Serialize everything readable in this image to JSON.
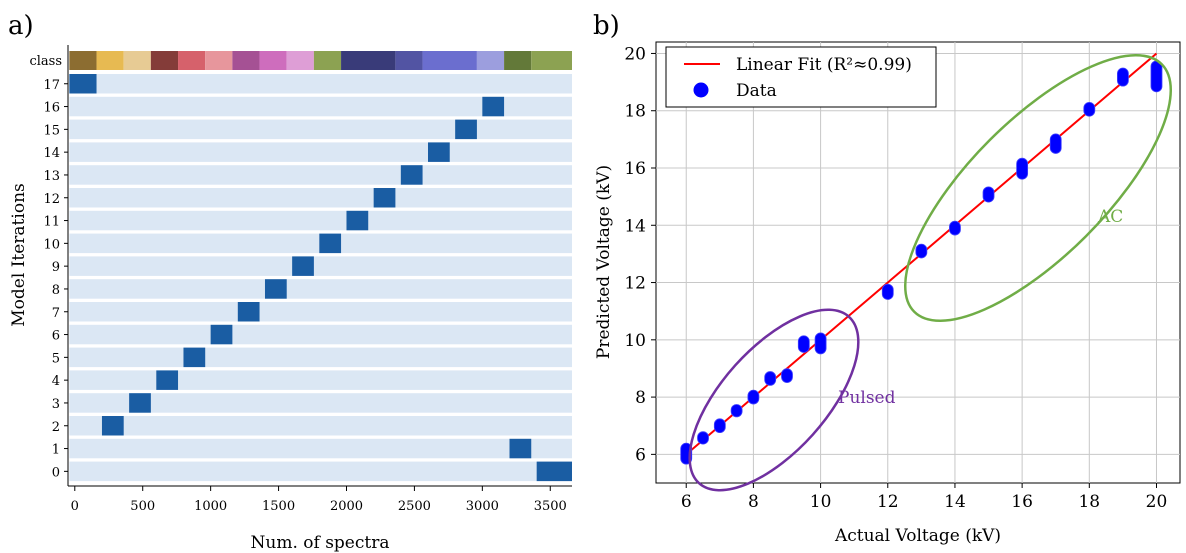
{
  "panels": {
    "a": "a)",
    "b": "b)"
  },
  "chart_data": [
    {
      "type": "heatmap",
      "xlabel": "Num. of spectra",
      "ylabel": "Model Iterations",
      "xlim": [
        -50,
        3660
      ],
      "x_ticks": [
        0,
        500,
        1000,
        1500,
        2000,
        2500,
        3000,
        3500
      ],
      "class_row_label": "class",
      "class_bar": [
        {
          "start": -40,
          "end": 160,
          "color": "#8c6d31"
        },
        {
          "start": 160,
          "end": 360,
          "color": "#e7ba52"
        },
        {
          "start": 360,
          "end": 560,
          "color": "#e7cb94"
        },
        {
          "start": 560,
          "end": 760,
          "color": "#843c39"
        },
        {
          "start": 760,
          "end": 960,
          "color": "#d6616b"
        },
        {
          "start": 960,
          "end": 1160,
          "color": "#e7969c"
        },
        {
          "start": 1160,
          "end": 1360,
          "color": "#a55194"
        },
        {
          "start": 1360,
          "end": 1560,
          "color": "#ce6dbd"
        },
        {
          "start": 1560,
          "end": 1760,
          "color": "#de9ed6"
        },
        {
          "start": 1760,
          "end": 1960,
          "color": "#8ca252"
        },
        {
          "start": 1960,
          "end": 2360,
          "color": "#393b79"
        },
        {
          "start": 2360,
          "end": 2560,
          "color": "#5254a3"
        },
        {
          "start": 2560,
          "end": 2960,
          "color": "#6b6ecf"
        },
        {
          "start": 2960,
          "end": 3160,
          "color": "#9c9ede"
        },
        {
          "start": 3160,
          "end": 3360,
          "color": "#637939"
        },
        {
          "start": 3360,
          "end": 3660,
          "color": "#8ca252"
        }
      ],
      "rows": [
        {
          "label": "17",
          "start": -40,
          "end": 160
        },
        {
          "label": "16",
          "start": 3000,
          "end": 3160
        },
        {
          "label": "15",
          "start": 2800,
          "end": 2960
        },
        {
          "label": "14",
          "start": 2600,
          "end": 2760
        },
        {
          "label": "13",
          "start": 2400,
          "end": 2560
        },
        {
          "label": "12",
          "start": 2200,
          "end": 2360
        },
        {
          "label": "11",
          "start": 2000,
          "end": 2160
        },
        {
          "label": "10",
          "start": 1800,
          "end": 1960
        },
        {
          "label": "9",
          "start": 1600,
          "end": 1760
        },
        {
          "label": "8",
          "start": 1400,
          "end": 1560
        },
        {
          "label": "7",
          "start": 1200,
          "end": 1360
        },
        {
          "label": "6",
          "start": 1000,
          "end": 1160
        },
        {
          "label": "5",
          "start": 800,
          "end": 960
        },
        {
          "label": "4",
          "start": 600,
          "end": 760
        },
        {
          "label": "3",
          "start": 400,
          "end": 560
        },
        {
          "label": "2",
          "start": 200,
          "end": 360
        },
        {
          "label": "1",
          "start": 3200,
          "end": 3360
        },
        {
          "label": "0",
          "start": 3400,
          "end": 3660
        }
      ],
      "background_color": "#dbe7f4",
      "highlight_color": "#1a5da3"
    },
    {
      "type": "scatter",
      "xlabel": "Actual Voltage (kV)",
      "ylabel": "Predicted Voltage (kV)",
      "xlim": [
        5.1,
        20.7
      ],
      "ylim": [
        5.0,
        20.4
      ],
      "x_ticks": [
        6,
        8,
        10,
        12,
        14,
        16,
        18,
        20
      ],
      "y_ticks": [
        6,
        8,
        10,
        12,
        14,
        16,
        18,
        20
      ],
      "grid": true,
      "legend_position": "top-left",
      "series": [
        {
          "name": "Linear Fit (R²≈0.99)",
          "kind": "line",
          "color": "#ff0000",
          "x": [
            6,
            20
          ],
          "y": [
            6.0,
            20.0
          ]
        },
        {
          "name": "Data",
          "kind": "points",
          "color": "#0000ff",
          "points": [
            {
              "x": 6,
              "y_low": 5.85,
              "y_high": 6.2
            },
            {
              "x": 6.5,
              "y_low": 6.55,
              "y_high": 6.6
            },
            {
              "x": 7,
              "y_low": 6.95,
              "y_high": 7.05
            },
            {
              "x": 7.5,
              "y_low": 7.5,
              "y_high": 7.55
            },
            {
              "x": 8,
              "y_low": 7.95,
              "y_high": 8.05
            },
            {
              "x": 8.5,
              "y_low": 8.6,
              "y_high": 8.7
            },
            {
              "x": 9,
              "y_low": 8.7,
              "y_high": 8.8
            },
            {
              "x": 9.5,
              "y_low": 9.75,
              "y_high": 9.95
            },
            {
              "x": 10,
              "y_low": 9.7,
              "y_high": 10.05
            },
            {
              "x": 12,
              "y_low": 11.6,
              "y_high": 11.75
            },
            {
              "x": 13,
              "y_low": 13.05,
              "y_high": 13.15
            },
            {
              "x": 14,
              "y_low": 13.85,
              "y_high": 13.95
            },
            {
              "x": 15,
              "y_low": 15.0,
              "y_high": 15.15
            },
            {
              "x": 16,
              "y_low": 15.8,
              "y_high": 16.15
            },
            {
              "x": 17,
              "y_low": 16.7,
              "y_high": 17.0
            },
            {
              "x": 18,
              "y_low": 18.0,
              "y_high": 18.1
            },
            {
              "x": 19,
              "y_low": 19.05,
              "y_high": 19.3
            },
            {
              "x": 20,
              "y_low": 18.85,
              "y_high": 19.55
            }
          ]
        }
      ],
      "annotations": [
        {
          "text": "Pulsed",
          "color": "#7030a0"
        },
        {
          "text": "AC",
          "color": "#70ad47"
        }
      ]
    }
  ]
}
